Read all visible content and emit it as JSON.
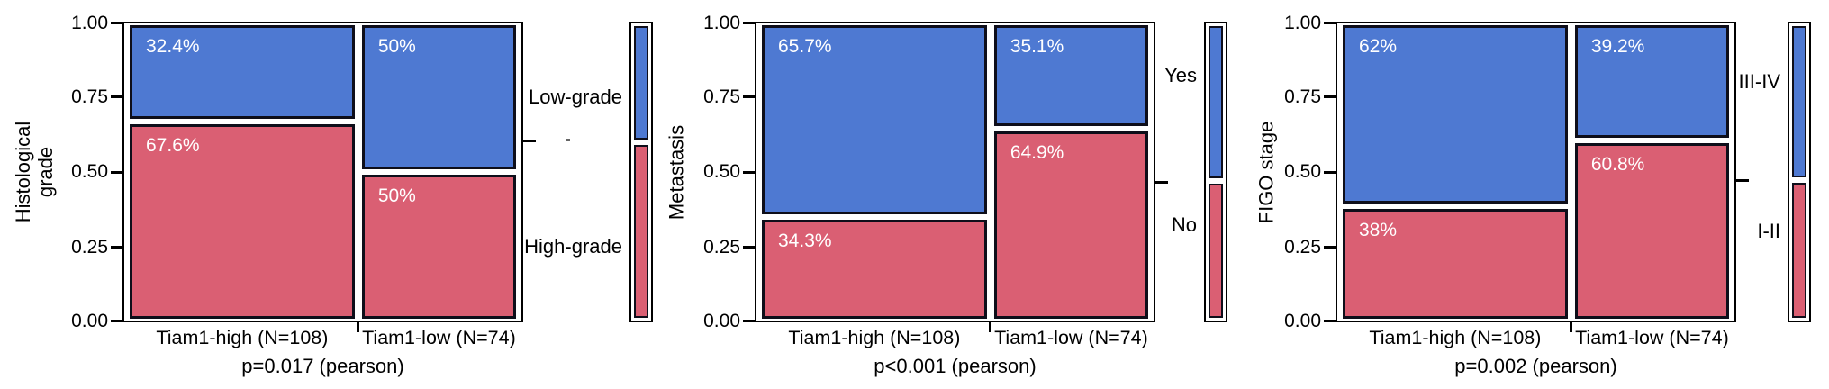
{
  "colors": {
    "blue": "#4e79d2",
    "red": "#da5f73",
    "box_border": "#0e0e1a",
    "frame": "#000000",
    "text": "#000000",
    "pct_text": "#ffffff"
  },
  "chart_data": [
    {
      "type": "mosaic",
      "ylabel": "Histological grade",
      "ylabel_lines": [
        "Histological",
        "grade"
      ],
      "ylim": [
        0,
        1
      ],
      "y_tick_labels": [
        "1.00",
        "0.75",
        "0.50",
        "0.25",
        "0.00"
      ],
      "categories": [
        "Tiam1-high (N=108)",
        "Tiam1-low (N=74)"
      ],
      "column_weights": [
        108,
        74
      ],
      "series": [
        {
          "name": "Low-grade",
          "color": "blue",
          "values": [
            32.4,
            50
          ],
          "labels": [
            "32.4%",
            "50%"
          ]
        },
        {
          "name": "High-grade",
          "color": "red",
          "values": [
            67.6,
            50
          ],
          "labels": [
            "67.6%",
            "50%"
          ]
        }
      ],
      "legend_top_fraction": 0.396,
      "caption": "p=0.017 (pearson)"
    },
    {
      "type": "mosaic",
      "ylabel": "Metastasis",
      "ylabel_lines": [
        "Metastasis"
      ],
      "ylim": [
        0,
        1
      ],
      "y_tick_labels": [
        "1.00",
        "0.75",
        "0.50",
        "0.25",
        "0.00"
      ],
      "categories": [
        "Tiam1-high (N=108)",
        "Tiam1-low (N=74)"
      ],
      "column_weights": [
        108,
        74
      ],
      "series": [
        {
          "name": "Yes",
          "color": "blue",
          "values": [
            65.7,
            35.1
          ],
          "labels": [
            "65.7%",
            "35.1%"
          ]
        },
        {
          "name": "No",
          "color": "red",
          "values": [
            34.3,
            64.9
          ],
          "labels": [
            "34.3%",
            "64.9%"
          ]
        }
      ],
      "legend_top_fraction": 0.533,
      "caption": "p<0.001 (pearson)"
    },
    {
      "type": "mosaic",
      "ylabel": "FIGO stage",
      "ylabel_lines": [
        "FIGO stage"
      ],
      "ylim": [
        0,
        1
      ],
      "y_tick_labels": [
        "1.00",
        "0.75",
        "0.50",
        "0.25",
        "0.00"
      ],
      "categories": [
        "Tiam1-high (N=108)",
        "Tiam1-low (N=74)"
      ],
      "column_weights": [
        108,
        74
      ],
      "series": [
        {
          "name": "III-IV",
          "color": "blue",
          "values": [
            62,
            39.2
          ],
          "labels": [
            "62%",
            "39.2%"
          ]
        },
        {
          "name": "I-II",
          "color": "red",
          "values": [
            38,
            60.8
          ],
          "labels": [
            "38%",
            "60.8%"
          ]
        }
      ],
      "legend_top_fraction": 0.527,
      "caption": "p=0.002 (pearson)"
    }
  ]
}
